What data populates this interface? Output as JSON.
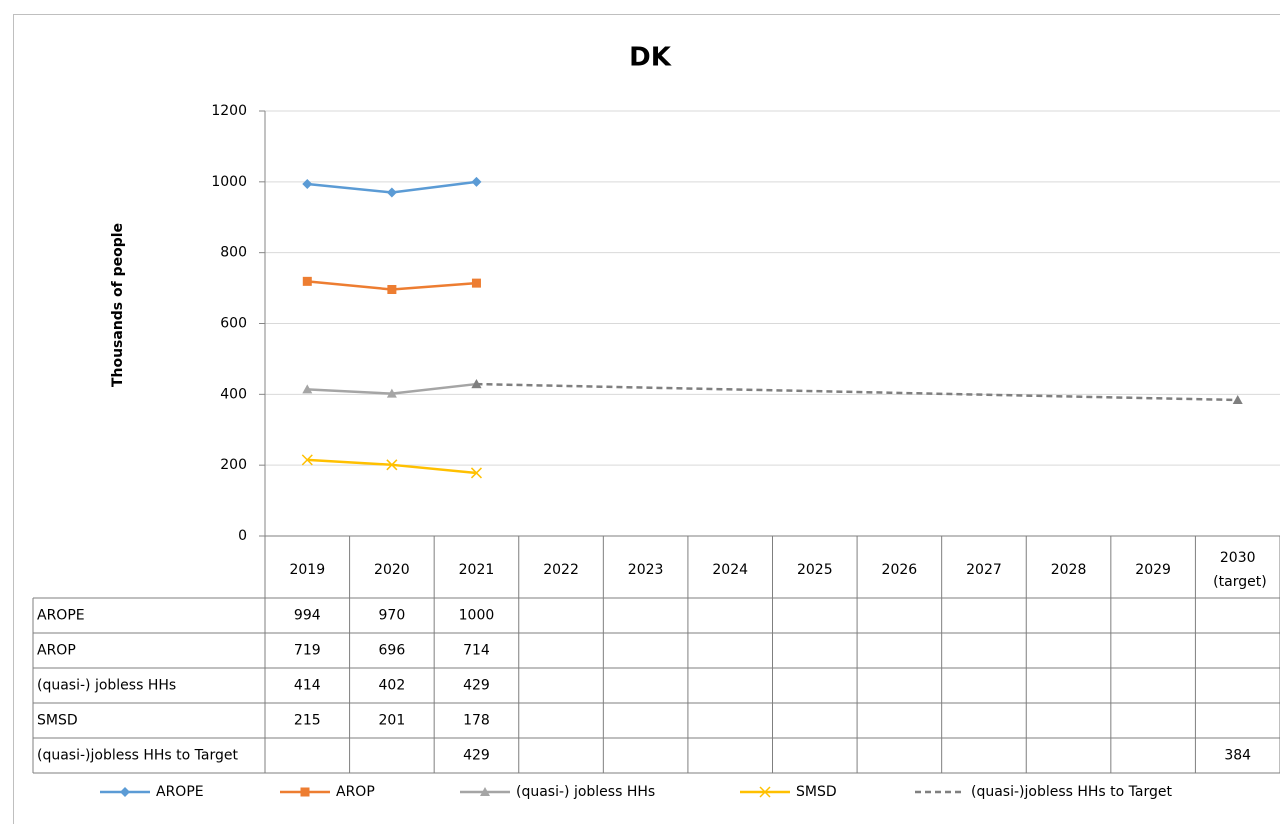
{
  "chart_data": {
    "type": "line",
    "title": "DK",
    "y_label": "Thousands of people",
    "categories": [
      "2019",
      "2020",
      "2021",
      "2022",
      "2023",
      "2024",
      "2025",
      "2026",
      "2027",
      "2028",
      "2029",
      "2030 (target)"
    ],
    "ylim": [
      0,
      1200
    ],
    "yticks": [
      0,
      200,
      400,
      600,
      800,
      1000,
      1200
    ],
    "grid": true,
    "legend": "bottom",
    "data_table": true,
    "series": [
      {
        "name": "AROPE",
        "color": "#5b9bd5",
        "marker": "diamond",
        "dashed": false,
        "connect_gaps": false,
        "values": [
          994,
          970,
          1000,
          null,
          null,
          null,
          null,
          null,
          null,
          null,
          null,
          null
        ]
      },
      {
        "name": "AROP",
        "color": "#ed7d31",
        "marker": "square",
        "dashed": false,
        "connect_gaps": false,
        "values": [
          719,
          696,
          714,
          null,
          null,
          null,
          null,
          null,
          null,
          null,
          null,
          null
        ]
      },
      {
        "name": "(quasi-) jobless HHs",
        "color": "#a5a5a5",
        "marker": "triangle",
        "dashed": false,
        "connect_gaps": false,
        "values": [
          414,
          402,
          429,
          null,
          null,
          null,
          null,
          null,
          null,
          null,
          null,
          null
        ]
      },
      {
        "name": "SMSD",
        "color": "#ffc000",
        "marker": "x",
        "dashed": false,
        "connect_gaps": false,
        "values": [
          215,
          201,
          178,
          null,
          null,
          null,
          null,
          null,
          null,
          null,
          null,
          null
        ]
      },
      {
        "name": "(quasi-)jobless HHs to Target",
        "color": "#7f7f7f",
        "marker": "triangle",
        "dashed": true,
        "connect_gaps": true,
        "values": [
          null,
          null,
          429,
          null,
          null,
          null,
          null,
          null,
          null,
          null,
          null,
          384
        ]
      }
    ]
  }
}
